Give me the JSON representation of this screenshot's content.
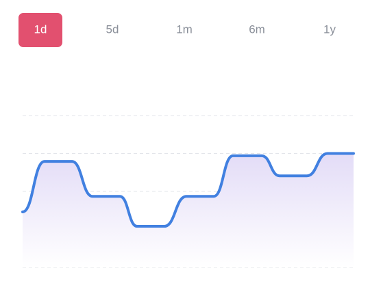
{
  "tabs": [
    "1d",
    "5d",
    "1m",
    "6m",
    "1y"
  ],
  "selected_tab": 0,
  "chart_data": {
    "type": "line",
    "x": [
      0,
      32,
      72,
      102,
      142,
      167,
      207,
      239,
      279,
      307,
      349,
      375,
      415,
      445,
      483
    ],
    "values": [
      1.46,
      2.79,
      2.79,
      1.87,
      1.87,
      1.08,
      1.08,
      1.87,
      1.87,
      2.94,
      2.94,
      2.41,
      2.41,
      3.0,
      3.0
    ],
    "color": "#4180e0",
    "fill": "#e3dcf7",
    "xlim": [
      0,
      483
    ],
    "ylim": [
      0,
      4
    ],
    "yticks": [
      0,
      1,
      2,
      3,
      4
    ],
    "grid": true
  }
}
